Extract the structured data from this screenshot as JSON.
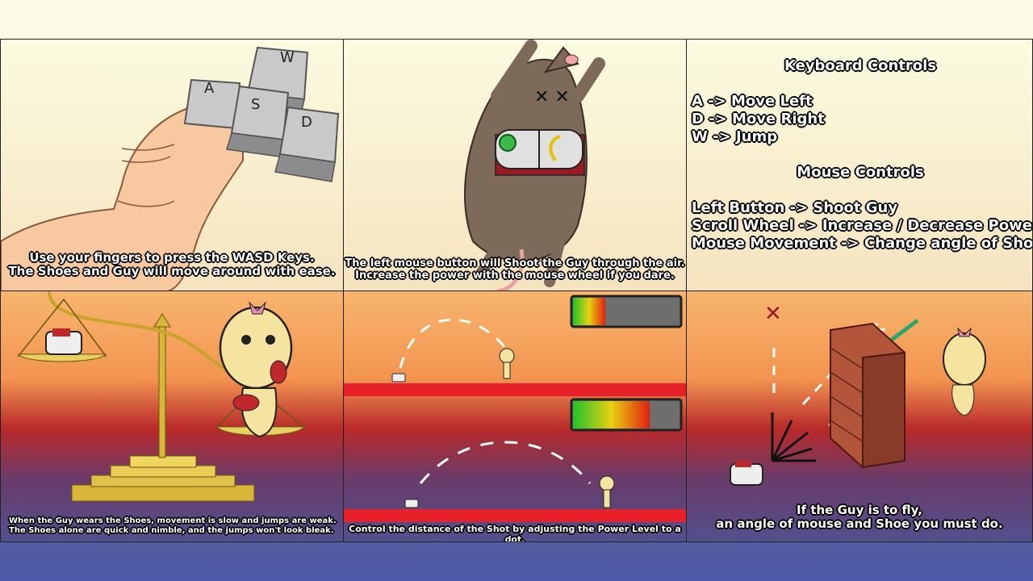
{
  "panels": {
    "wasd": {
      "keys": [
        "W",
        "A",
        "S",
        "D"
      ],
      "caption_1": "Use your fingers to press the WASD Keys.",
      "caption_2": "The Shoes and Guy will move around with ease."
    },
    "mouse": {
      "caption_1": "The left mouse button will Shoot the Guy through the air.",
      "caption_2": "Increase the power with the mouse wheel if you dare."
    },
    "controls": {
      "keyboard_title": "Keyboard Controls",
      "keyboard_lines": [
        "A -> Move Left",
        "D -> Move Right",
        "W -> Jump"
      ],
      "mouse_title": "Mouse Controls",
      "mouse_lines": [
        "Left Button -> Shoot Guy",
        "Scroll Wheel -> Increase / Decrease Power",
        "Mouse Movement -> Change angle of Shot"
      ]
    },
    "scale": {
      "caption_1": "When the Guy wears the Shoes, movement is slow and jumps are weak.",
      "caption_2": "The Shoes alone are quick and nimble, and the jumps won't look bleak."
    },
    "power": {
      "caption": "Control the distance of the Shot by adjusting the Power Level to a dot.",
      "power_low": 0.3,
      "power_high": 0.72
    },
    "angle": {
      "caption_1": "If the Guy is to fly,",
      "caption_2": "an angle of mouse and Shoe you must do."
    }
  },
  "colors": {
    "outline": "#000000",
    "ground_red": "#e8202a",
    "check_green": "#2aa76a",
    "cross_red": "#9a1a22"
  }
}
